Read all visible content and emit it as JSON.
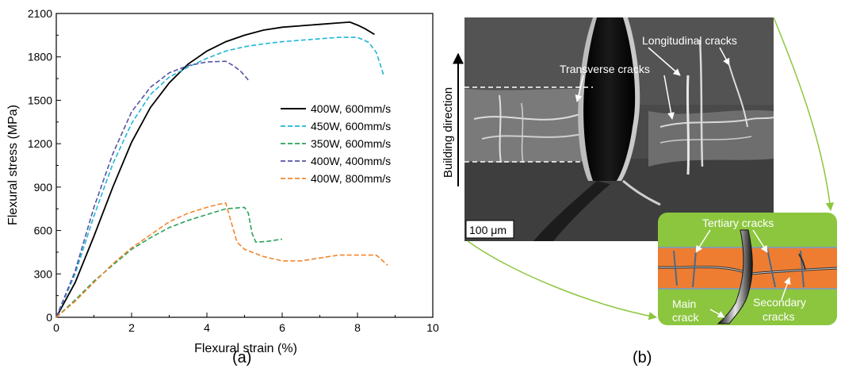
{
  "chart_data": {
    "type": "line",
    "xlabel": "Flexural strain (%)",
    "ylabel": "Flexural stress (MPa)",
    "xlim": [
      0,
      10
    ],
    "ylim": [
      0,
      2100
    ],
    "xticks": [
      0,
      2,
      4,
      6,
      8,
      10
    ],
    "yticks": [
      0,
      300,
      600,
      900,
      1200,
      1500,
      1800,
      2100
    ],
    "legend_position": "right",
    "grid": false,
    "series": [
      {
        "name": "400W, 600mm/s",
        "color": "#000000",
        "dash": "solid",
        "points": [
          [
            0,
            0
          ],
          [
            0.5,
            240
          ],
          [
            1,
            560
          ],
          [
            1.5,
            900
          ],
          [
            2,
            1210
          ],
          [
            2.5,
            1450
          ],
          [
            3,
            1620
          ],
          [
            3.5,
            1750
          ],
          [
            4,
            1840
          ],
          [
            4.5,
            1905
          ],
          [
            5,
            1950
          ],
          [
            5.5,
            1985
          ],
          [
            6,
            2005
          ],
          [
            6.5,
            2015
          ],
          [
            7,
            2025
          ],
          [
            7.5,
            2035
          ],
          [
            7.8,
            2040
          ],
          [
            8,
            2020
          ],
          [
            8.2,
            1995
          ],
          [
            8.45,
            1955
          ]
        ]
      },
      {
        "name": "450W, 600mm/s",
        "color": "#21b6d6",
        "dash": "dashed",
        "points": [
          [
            0,
            0
          ],
          [
            0.5,
            300
          ],
          [
            1,
            700
          ],
          [
            1.5,
            1060
          ],
          [
            2,
            1340
          ],
          [
            2.5,
            1540
          ],
          [
            3,
            1660
          ],
          [
            3.5,
            1730
          ],
          [
            4,
            1790
          ],
          [
            4.5,
            1840
          ],
          [
            5,
            1870
          ],
          [
            5.5,
            1890
          ],
          [
            6,
            1905
          ],
          [
            6.5,
            1915
          ],
          [
            7,
            1925
          ],
          [
            7.5,
            1935
          ],
          [
            8,
            1935
          ],
          [
            8.3,
            1900
          ],
          [
            8.5,
            1830
          ],
          [
            8.7,
            1670
          ]
        ]
      },
      {
        "name": "350W, 600mm/s",
        "color": "#2aa35a",
        "dash": "dashed",
        "points": [
          [
            0,
            0
          ],
          [
            0.5,
            120
          ],
          [
            1,
            250
          ],
          [
            1.5,
            360
          ],
          [
            2,
            470
          ],
          [
            2.5,
            550
          ],
          [
            3,
            620
          ],
          [
            3.5,
            670
          ],
          [
            4,
            710
          ],
          [
            4.5,
            750
          ],
          [
            5,
            760
          ],
          [
            5.1,
            720
          ],
          [
            5.2,
            580
          ],
          [
            5.3,
            520
          ],
          [
            5.6,
            525
          ],
          [
            6,
            540
          ]
        ]
      },
      {
        "name": "400W, 400mm/s",
        "color": "#5553a6",
        "dash": "dashed",
        "points": [
          [
            0,
            0
          ],
          [
            0.5,
            320
          ],
          [
            1,
            760
          ],
          [
            1.5,
            1130
          ],
          [
            2,
            1420
          ],
          [
            2.5,
            1590
          ],
          [
            3,
            1690
          ],
          [
            3.5,
            1740
          ],
          [
            4,
            1765
          ],
          [
            4.5,
            1770
          ],
          [
            4.7,
            1740
          ],
          [
            4.9,
            1700
          ],
          [
            5.1,
            1640
          ]
        ]
      },
      {
        "name": "400W, 800mm/s",
        "color": "#f2862e",
        "dash": "dashed",
        "points": [
          [
            0,
            0
          ],
          [
            0.5,
            110
          ],
          [
            1,
            240
          ],
          [
            1.5,
            370
          ],
          [
            2,
            480
          ],
          [
            2.5,
            570
          ],
          [
            3,
            660
          ],
          [
            3.5,
            720
          ],
          [
            4,
            760
          ],
          [
            4.3,
            780
          ],
          [
            4.5,
            790
          ],
          [
            4.6,
            700
          ],
          [
            4.8,
            520
          ],
          [
            5,
            470
          ],
          [
            5.5,
            420
          ],
          [
            6,
            390
          ],
          [
            6.5,
            390
          ],
          [
            7,
            410
          ],
          [
            7.5,
            430
          ],
          [
            8,
            430
          ],
          [
            8.5,
            430
          ],
          [
            8.8,
            360
          ]
        ]
      }
    ]
  },
  "panel_labels": {
    "a": "(a)",
    "b": "(b)"
  },
  "micrograph": {
    "labels": {
      "longitudinal": "Longitudinal cracks",
      "transverse": "Transverse cracks",
      "building_direction": "Building direction",
      "scale_bar": "100 μm"
    }
  },
  "schematic": {
    "labels": {
      "tertiary": "Tertiary cracks",
      "main_1": "Main",
      "main_2": "crack",
      "secondary_1": "Secondary",
      "secondary_2": "cracks"
    },
    "colors": {
      "green": "#8cc63f",
      "orange": "#ee7d31",
      "arrow": "#8cc63f"
    }
  }
}
